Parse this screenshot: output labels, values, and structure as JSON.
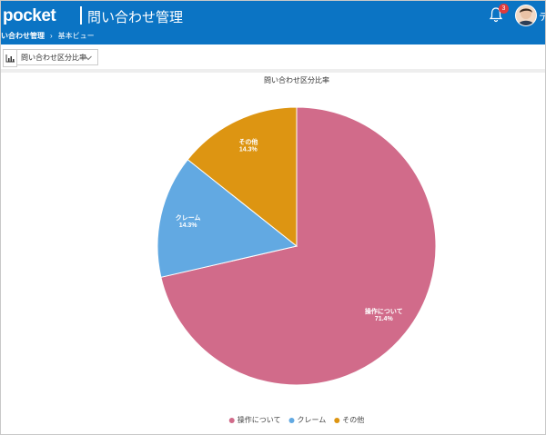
{
  "header": {
    "app_name": "pocket",
    "title": "問い合わせ管理",
    "notification_count": 3,
    "user_initial": "テ"
  },
  "breadcrumb": [
    "い合わせ管理",
    "基本ビュー"
  ],
  "toolbar": {
    "view_select": "問い合わせ区分比率"
  },
  "chart_data": {
    "type": "pie",
    "title": "問い合わせ区分比率",
    "categories": [
      "操作について",
      "クレーム",
      "その他"
    ],
    "values": [
      71.4,
      14.3,
      14.3
    ],
    "value_labels": [
      "71.4%",
      "14.3%",
      "14.3%"
    ],
    "colors": [
      "#d16b8a",
      "#62a9e2",
      "#dd9512"
    ],
    "legend": "bottom"
  }
}
